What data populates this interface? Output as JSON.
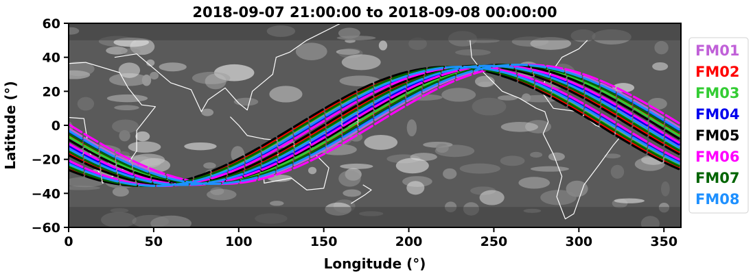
{
  "chart_data": {
    "type": "line",
    "title": "2018-09-07 21:00:00 to 2018-09-08 00:00:00",
    "xlabel": "Longitude (°)",
    "ylabel": "Latitude (°)",
    "xlim": [
      0,
      360
    ],
    "ylim": [
      -60,
      60
    ],
    "xticks": [
      0,
      50,
      100,
      150,
      200,
      250,
      300,
      350
    ],
    "yticks": [
      -60,
      -40,
      -20,
      0,
      20,
      40,
      60
    ],
    "grid": false,
    "legend_position": "right",
    "background": "grayscale infrared satellite imagery with coastlines",
    "orbit_model": {
      "amplitude_deg": 35,
      "node_spread_deg": [
        -12,
        12
      ]
    },
    "series": [
      {
        "name": "FM01",
        "color": "#c060d8",
        "ascending_node_lon": [
          140,
          158,
          176
        ]
      },
      {
        "name": "FM02",
        "color": "#ff0000",
        "ascending_node_lon": [
          135,
          152,
          170
        ]
      },
      {
        "name": "FM03",
        "color": "#33cc33",
        "ascending_node_lon": [
          138,
          155,
          168
        ]
      },
      {
        "name": "FM04",
        "color": "#0000ee",
        "ascending_node_lon": [
          142,
          160,
          173
        ]
      },
      {
        "name": "FM05",
        "color": "#000000",
        "ascending_node_lon": [
          133,
          150,
          165
        ]
      },
      {
        "name": "FM06",
        "color": "#ff00ff",
        "ascending_node_lon": [
          145,
          162,
          180
        ]
      },
      {
        "name": "FM07",
        "color": "#006400",
        "ascending_node_lon": [
          137,
          154,
          171
        ]
      },
      {
        "name": "FM08",
        "color": "#1e90ff",
        "ascending_node_lon": [
          141,
          157,
          174
        ]
      }
    ]
  }
}
